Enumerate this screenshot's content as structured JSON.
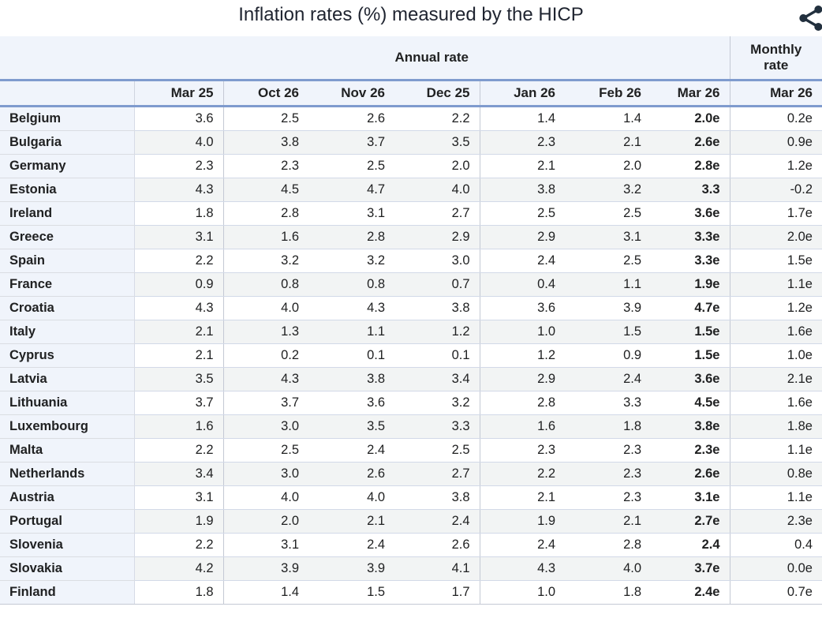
{
  "title": "Inflation rates (%) measured by the HICP",
  "icons": {
    "share": "share-icon"
  },
  "colors": {
    "header_bg": "#f0f4fb",
    "country_col_bg": "#f0f4fb",
    "alt_row_bg": "#f2f4f4",
    "blue_divider": "#7f9bce",
    "group_separator": "#c4c9d4",
    "icon_color": "#22303e",
    "text": "#202122"
  },
  "chart_data": {
    "type": "table",
    "title": "Inflation rates (%) measured by the HICP",
    "groups": {
      "annual": {
        "label": "Annual rate",
        "span": 7
      },
      "monthly": {
        "label": "Monthly rate",
        "span": 1
      }
    },
    "columns": [
      "Mar 25",
      "Oct 26",
      "Nov 26",
      "Dec 25",
      "Jan 26",
      "Feb 26",
      "Mar 26",
      "Mar 26"
    ],
    "rows": [
      {
        "country": "Belgium",
        "values": [
          "3.6",
          "2.5",
          "2.6",
          "2.2",
          "1.4",
          "1.4",
          "2.0e",
          "0.2e"
        ]
      },
      {
        "country": "Bulgaria",
        "values": [
          "4.0",
          "3.8",
          "3.7",
          "3.5",
          "2.3",
          "2.1",
          "2.6e",
          "0.9e"
        ]
      },
      {
        "country": "Germany",
        "values": [
          "2.3",
          "2.3",
          "2.5",
          "2.0",
          "2.1",
          "2.0",
          "2.8e",
          "1.2e"
        ]
      },
      {
        "country": "Estonia",
        "values": [
          "4.3",
          "4.5",
          "4.7",
          "4.0",
          "3.8",
          "3.2",
          "3.3",
          "-0.2"
        ]
      },
      {
        "country": "Ireland",
        "values": [
          "1.8",
          "2.8",
          "3.1",
          "2.7",
          "2.5",
          "2.5",
          "3.6e",
          "1.7e"
        ]
      },
      {
        "country": "Greece",
        "values": [
          "3.1",
          "1.6",
          "2.8",
          "2.9",
          "2.9",
          "3.1",
          "3.3e",
          "2.0e"
        ]
      },
      {
        "country": "Spain",
        "values": [
          "2.2",
          "3.2",
          "3.2",
          "3.0",
          "2.4",
          "2.5",
          "3.3e",
          "1.5e"
        ]
      },
      {
        "country": "France",
        "values": [
          "0.9",
          "0.8",
          "0.8",
          "0.7",
          "0.4",
          "1.1",
          "1.9e",
          "1.1e"
        ]
      },
      {
        "country": "Croatia",
        "values": [
          "4.3",
          "4.0",
          "4.3",
          "3.8",
          "3.6",
          "3.9",
          "4.7e",
          "1.2e"
        ]
      },
      {
        "country": "Italy",
        "values": [
          "2.1",
          "1.3",
          "1.1",
          "1.2",
          "1.0",
          "1.5",
          "1.5e",
          "1.6e"
        ]
      },
      {
        "country": "Cyprus",
        "values": [
          "2.1",
          "0.2",
          "0.1",
          "0.1",
          "1.2",
          "0.9",
          "1.5e",
          "1.0e"
        ]
      },
      {
        "country": "Latvia",
        "values": [
          "3.5",
          "4.3",
          "3.8",
          "3.4",
          "2.9",
          "2.4",
          "3.6e",
          "2.1e"
        ]
      },
      {
        "country": "Lithuania",
        "values": [
          "3.7",
          "3.7",
          "3.6",
          "3.2",
          "2.8",
          "3.3",
          "4.5e",
          "1.6e"
        ]
      },
      {
        "country": "Luxembourg",
        "values": [
          "1.6",
          "3.0",
          "3.5",
          "3.3",
          "1.6",
          "1.8",
          "3.8e",
          "1.8e"
        ]
      },
      {
        "country": "Malta",
        "values": [
          "2.2",
          "2.5",
          "2.4",
          "2.5",
          "2.3",
          "2.3",
          "2.3e",
          "1.1e"
        ]
      },
      {
        "country": "Netherlands",
        "values": [
          "3.4",
          "3.0",
          "2.6",
          "2.7",
          "2.2",
          "2.3",
          "2.6e",
          "0.8e"
        ]
      },
      {
        "country": "Austria",
        "values": [
          "3.1",
          "4.0",
          "4.0",
          "3.8",
          "2.1",
          "2.3",
          "3.1e",
          "1.1e"
        ]
      },
      {
        "country": "Portugal",
        "values": [
          "1.9",
          "2.0",
          "2.1",
          "2.4",
          "1.9",
          "2.1",
          "2.7e",
          "2.3e"
        ]
      },
      {
        "country": "Slovenia",
        "values": [
          "2.2",
          "3.1",
          "2.4",
          "2.6",
          "2.4",
          "2.8",
          "2.4",
          "0.4"
        ]
      },
      {
        "country": "Slovakia",
        "values": [
          "4.2",
          "3.9",
          "3.9",
          "4.1",
          "4.3",
          "4.0",
          "3.7e",
          "0.0e"
        ]
      },
      {
        "country": "Finland",
        "values": [
          "1.8",
          "1.4",
          "1.5",
          "1.7",
          "1.0",
          "1.8",
          "2.4e",
          "0.7e"
        ]
      }
    ]
  }
}
